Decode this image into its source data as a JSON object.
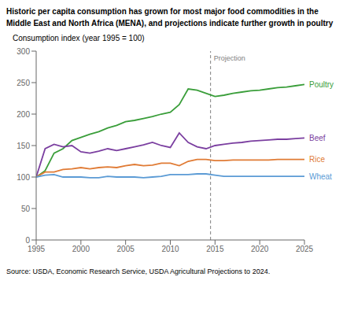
{
  "chart_data": {
    "type": "line",
    "title": "Historic per capita consumption has grown for most major food commodities in the",
    "subtitle": "Middle East and North Africa (MENA), and projections indicate further growth in poultry",
    "ylabel": "Consumption index (year 1995 = 100)",
    "source": "Source: USDA, Economic Research Service, USDA Agricultural Projections to 2024.",
    "annotations": [
      {
        "text": "Projection",
        "x": 2014.5
      }
    ],
    "xlim": [
      1995,
      2025
    ],
    "ylim": [
      0,
      300
    ],
    "xticks": [
      1995,
      2000,
      2005,
      2010,
      2015,
      2020,
      2025
    ],
    "yticks": [
      0,
      50,
      100,
      150,
      200,
      250,
      300
    ],
    "grid": false,
    "x": [
      1995,
      1996,
      1997,
      1998,
      1999,
      2000,
      2001,
      2002,
      2003,
      2004,
      2005,
      2006,
      2007,
      2008,
      2009,
      2010,
      2011,
      2012,
      2013,
      2014,
      2015,
      2016,
      2017,
      2018,
      2019,
      2020,
      2021,
      2022,
      2023,
      2024,
      2025
    ],
    "series": [
      {
        "name": "Poultry",
        "color": "#3a9e3a",
        "values": [
          100,
          110,
          138,
          145,
          158,
          163,
          168,
          172,
          178,
          182,
          188,
          190,
          193,
          196,
          200,
          203,
          215,
          240,
          238,
          233,
          228,
          230,
          233,
          235,
          237,
          238,
          240,
          242,
          243,
          245,
          247
        ]
      },
      {
        "name": "Beef",
        "color": "#7b3fa0",
        "values": [
          100,
          145,
          152,
          148,
          150,
          140,
          138,
          141,
          145,
          142,
          145,
          148,
          151,
          155,
          150,
          147,
          170,
          155,
          148,
          145,
          150,
          152,
          154,
          155,
          157,
          158,
          159,
          160,
          160,
          161,
          162
        ]
      },
      {
        "name": "Rice",
        "color": "#e07b35",
        "values": [
          100,
          108,
          108,
          112,
          113,
          115,
          113,
          115,
          116,
          115,
          118,
          120,
          118,
          119,
          122,
          122,
          118,
          125,
          128,
          128,
          126,
          126,
          127,
          127,
          127,
          127,
          127,
          128,
          128,
          128,
          128
        ]
      },
      {
        "name": "Wheat",
        "color": "#5b9bd5",
        "values": [
          100,
          103,
          104,
          100,
          100,
          100,
          99,
          99,
          101,
          100,
          100,
          100,
          99,
          100,
          101,
          104,
          104,
          104,
          105,
          105,
          103,
          101,
          101,
          101,
          101,
          101,
          101,
          101,
          101,
          101,
          101
        ]
      }
    ]
  }
}
